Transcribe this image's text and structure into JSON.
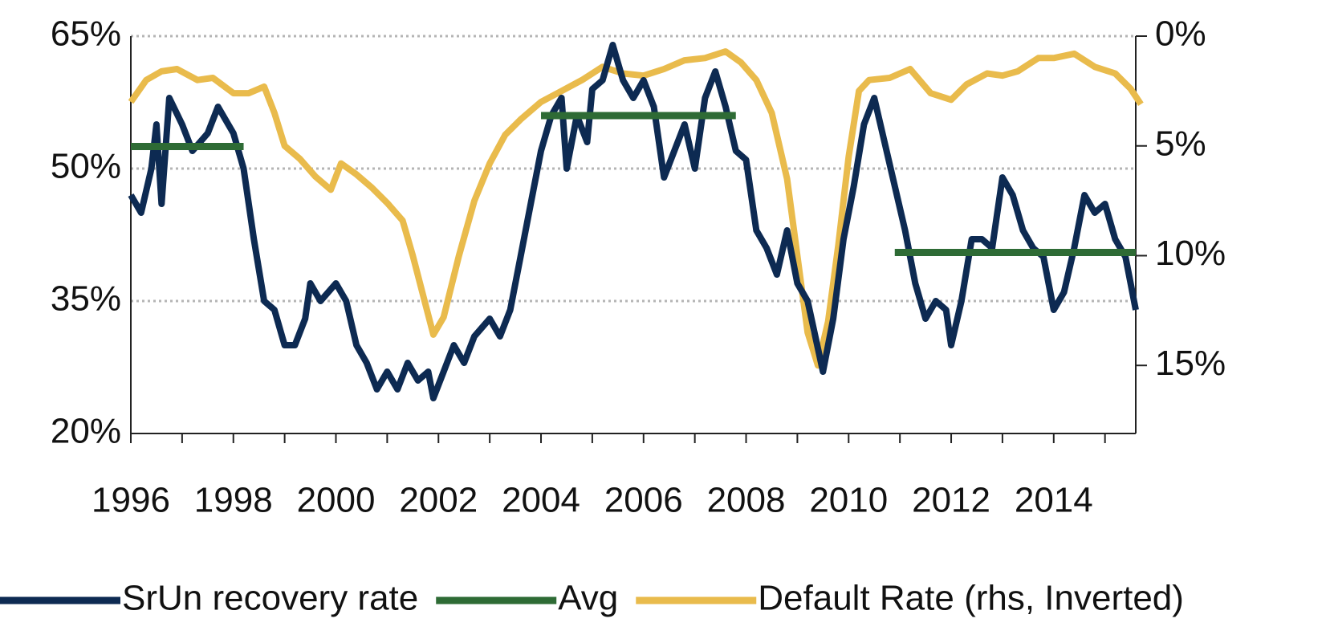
{
  "chart_data": {
    "type": "line",
    "xlim": [
      1996,
      2015.6
    ],
    "xticks": [
      1996,
      1998,
      2000,
      2002,
      2004,
      2006,
      2008,
      2010,
      2012,
      2014
    ],
    "xminorticks": [
      1997,
      1999,
      2001,
      2003,
      2005,
      2007,
      2009,
      2011,
      2013,
      2015
    ],
    "ylim": [
      20,
      65
    ],
    "yticks": [
      {
        "value": 20,
        "label": "20%"
      },
      {
        "value": 35,
        "label": "35%"
      },
      {
        "value": 50,
        "label": "50%"
      },
      {
        "value": 65,
        "label": "65%"
      }
    ],
    "y2lim": [
      0,
      18.1
    ],
    "y2_inverted": true,
    "y2ticks": [
      {
        "value": 0,
        "label": "0%"
      },
      {
        "value": 5,
        "label": "5%"
      },
      {
        "value": 10,
        "label": "10%"
      },
      {
        "value": 15,
        "label": "15%"
      }
    ],
    "grid": true,
    "legend": "bottom",
    "series": [
      {
        "name": "SrUn recovery rate",
        "color": "#0d2a52",
        "x": [
          1996.0,
          1996.2,
          1996.4,
          1996.5,
          1996.6,
          1996.75,
          1997.0,
          1997.2,
          1997.5,
          1997.7,
          1998.0,
          1998.2,
          1998.4,
          1998.6,
          1998.8,
          1999.0,
          1999.2,
          1999.4,
          1999.5,
          1999.7,
          2000.0,
          2000.2,
          2000.4,
          2000.6,
          2000.8,
          2001.0,
          2001.2,
          2001.4,
          2001.6,
          2001.8,
          2001.9,
          2002.1,
          2002.3,
          2002.5,
          2002.7,
          2003.0,
          2003.2,
          2003.4,
          2003.6,
          2003.8,
          2004.0,
          2004.2,
          2004.4,
          2004.5,
          2004.7,
          2004.9,
          2005.0,
          2005.2,
          2005.4,
          2005.6,
          2005.8,
          2006.0,
          2006.2,
          2006.4,
          2006.6,
          2006.8,
          2007.0,
          2007.2,
          2007.4,
          2007.6,
          2007.8,
          2008.0,
          2008.2,
          2008.4,
          2008.6,
          2008.8,
          2009.0,
          2009.2,
          2009.5,
          2009.7,
          2009.9,
          2010.1,
          2010.3,
          2010.5,
          2010.7,
          2010.9,
          2011.1,
          2011.3,
          2011.5,
          2011.7,
          2011.9,
          2012.0,
          2012.2,
          2012.4,
          2012.6,
          2012.8,
          2013.0,
          2013.2,
          2013.4,
          2013.6,
          2013.8,
          2014.0,
          2014.2,
          2014.4,
          2014.6,
          2014.8,
          2015.0,
          2015.2,
          2015.4,
          2015.6
        ],
        "values": [
          47,
          45,
          50,
          55,
          46,
          58,
          55,
          52,
          54,
          57,
          54,
          50,
          42,
          35,
          34,
          30,
          30,
          33,
          37,
          35,
          37,
          35,
          30,
          28,
          25,
          27,
          25,
          28,
          26,
          27,
          24,
          27,
          30,
          28,
          31,
          33,
          31,
          34,
          40,
          46,
          52,
          56,
          58,
          50,
          56,
          53,
          59,
          60,
          64,
          60,
          58,
          60,
          57,
          49,
          52,
          55,
          50,
          58,
          61,
          57,
          52,
          51,
          43,
          41,
          38,
          43,
          37,
          35,
          27,
          33,
          42,
          48,
          55,
          58,
          53,
          48,
          43,
          37,
          33,
          35,
          34,
          30,
          35,
          42,
          42,
          41,
          49,
          47,
          43,
          41,
          40,
          34,
          36,
          41,
          47,
          45,
          46,
          42,
          40,
          34
        ]
      },
      {
        "name": "Avg",
        "color": "#2e6b35",
        "segments": [
          {
            "x": [
              1996.0,
              1998.2
            ],
            "value": 52.5
          },
          {
            "x": [
              2004.0,
              2007.8
            ],
            "value": 56
          },
          {
            "x": [
              2010.9,
              2015.6
            ],
            "value": 40.5
          }
        ]
      },
      {
        "name": "Default Rate (rhs, Inverted)",
        "color": "#e9bb4c",
        "axis": "y2",
        "x": [
          1996.0,
          1996.3,
          1996.6,
          1996.9,
          1997.3,
          1997.6,
          1998.0,
          1998.3,
          1998.6,
          1998.8,
          1999.0,
          1999.3,
          1999.6,
          1999.9,
          2000.1,
          2000.4,
          2000.7,
          2001.0,
          2001.3,
          2001.5,
          2001.7,
          2001.9,
          2002.1,
          2002.4,
          2002.7,
          2003.0,
          2003.3,
          2003.6,
          2004.0,
          2004.4,
          2004.8,
          2005.2,
          2005.6,
          2006.0,
          2006.4,
          2006.8,
          2007.2,
          2007.6,
          2007.9,
          2008.2,
          2008.5,
          2008.8,
          2009.0,
          2009.2,
          2009.4,
          2009.6,
          2009.8,
          2010.0,
          2010.2,
          2010.4,
          2010.8,
          2011.2,
          2011.6,
          2012.0,
          2012.3,
          2012.7,
          2013.0,
          2013.3,
          2013.7,
          2014.0,
          2014.4,
          2014.8,
          2015.2,
          2015.5,
          2015.7
        ],
        "values": [
          3.0,
          2.0,
          1.6,
          1.5,
          2.0,
          1.9,
          2.6,
          2.6,
          2.3,
          3.5,
          5.0,
          5.6,
          6.4,
          7.0,
          5.8,
          6.3,
          6.9,
          7.6,
          8.4,
          10.0,
          11.8,
          13.6,
          12.8,
          10.0,
          7.5,
          5.8,
          4.5,
          3.8,
          3.0,
          2.5,
          2.0,
          1.4,
          1.7,
          1.8,
          1.5,
          1.1,
          1.0,
          0.7,
          1.2,
          2.0,
          3.5,
          6.5,
          10.0,
          13.5,
          15.0,
          13.0,
          9.5,
          5.5,
          2.5,
          2.0,
          1.9,
          1.5,
          2.6,
          2.9,
          2.2,
          1.7,
          1.8,
          1.6,
          1.0,
          1.0,
          0.8,
          1.4,
          1.7,
          2.4,
          3.1
        ]
      }
    ]
  }
}
